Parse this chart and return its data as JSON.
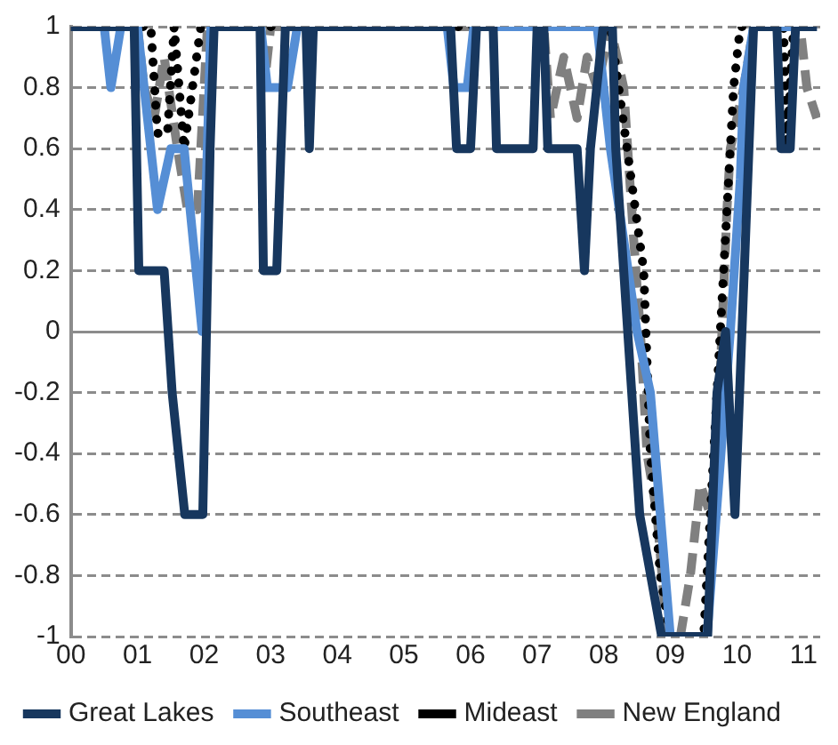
{
  "chart_data": {
    "type": "line",
    "xlim": [
      2000,
      2011.25
    ],
    "xticks": [
      {
        "value": 2000,
        "label": "00"
      },
      {
        "value": 2001,
        "label": "01"
      },
      {
        "value": 2002,
        "label": "02"
      },
      {
        "value": 2003,
        "label": "03"
      },
      {
        "value": 2004,
        "label": "04"
      },
      {
        "value": 2005,
        "label": "05"
      },
      {
        "value": 2006,
        "label": "06"
      },
      {
        "value": 2007,
        "label": "07"
      },
      {
        "value": 2008,
        "label": "08"
      },
      {
        "value": 2009,
        "label": "09"
      },
      {
        "value": 2010,
        "label": "10"
      },
      {
        "value": 2011,
        "label": "11"
      }
    ],
    "ylim": [
      -1,
      1
    ],
    "yticks": [
      -1,
      -0.8,
      -0.6,
      -0.4,
      -0.2,
      0,
      0.2,
      0.4,
      0.6,
      0.8,
      1
    ],
    "grid": "y",
    "legend": "bottom",
    "marker": "none",
    "series": [
      {
        "name": "Great Lakes",
        "color": "#17375e",
        "line_style": "solid",
        "x": [
          2000,
          2000.95,
          2001.02,
          2001.3,
          2001.4,
          2001.52,
          2001.71,
          2001.98,
          2002.09,
          2002.15,
          2002.84,
          2002.89,
          2003.09,
          2003.22,
          2003.53,
          2003.58,
          2003.64,
          2005.7,
          2005.79,
          2006.0,
          2006.09,
          2006.34,
          2006.39,
          2006.94,
          2007.0,
          2007.1,
          2007.16,
          2007.6,
          2007.71,
          2007.8,
          2007.99,
          2008.13,
          2008.18,
          2008.54,
          2008.87,
          2009.56,
          2009.7,
          2009.83,
          2009.97,
          2010.25,
          2010.6,
          2010.66,
          2010.8,
          2010.88,
          2011.2
        ],
        "values": [
          1,
          1,
          0.2,
          0.2,
          0.2,
          -0.2,
          -0.6,
          -0.6,
          0.6,
          1,
          1,
          0.2,
          0.2,
          1,
          1,
          0.6,
          1,
          1,
          0.6,
          0.6,
          1,
          1,
          0.6,
          0.6,
          1,
          1,
          0.6,
          0.6,
          0.2,
          0.6,
          1,
          1,
          0.6,
          -0.6,
          -1,
          -1,
          -0.2,
          0,
          -0.6,
          1,
          1,
          0.6,
          0.6,
          1,
          1
        ]
      },
      {
        "name": "Southeast",
        "color": "#558ed5",
        "line_style": "solid",
        "x": [
          2000,
          2000.5,
          2000.6,
          2000.75,
          2001.0,
          2001.3,
          2001.5,
          2001.7,
          2001.97,
          2002.1,
          2002.85,
          2002.95,
          2003.25,
          2003.4,
          2005.65,
          2005.75,
          2005.95,
          2006.05,
          2007.9,
          2008.1,
          2008.5,
          2008.7,
          2009.0,
          2009.55,
          2009.9,
          2010.05,
          2010.1,
          2010.25,
          2011.2
        ],
        "values": [
          1,
          1,
          0.8,
          1,
          1,
          0.4,
          0.6,
          0.6,
          0,
          1,
          1,
          0.8,
          0.8,
          1,
          1,
          0.8,
          0.8,
          1,
          1,
          0.6,
          0,
          -0.2,
          -1,
          -1,
          0,
          0.5,
          0.8,
          1,
          1
        ]
      },
      {
        "name": "Mideast",
        "color": "#000000",
        "line_style": "dotted",
        "x": [
          2000,
          2001.2,
          2001.3,
          2001.45,
          2001.55,
          2001.7,
          2001.95,
          2008.1,
          2008.6,
          2008.7,
          2008.85,
          2009.0,
          2009.5,
          2009.6,
          2009.75,
          2009.85,
          2009.95,
          2010.05,
          2010.7,
          2010.75,
          2010.85,
          2011.2
        ],
        "values": [
          1,
          1,
          0.65,
          0.65,
          1,
          0.6,
          1,
          1,
          0.2,
          -0.4,
          -0.8,
          -1,
          -1,
          -0.6,
          0,
          0.4,
          0.8,
          1,
          1,
          0.6,
          1,
          1
        ]
      },
      {
        "name": "New England",
        "color": "#808080",
        "line_style": "dashed",
        "x": [
          2000,
          2001.0,
          2001.1,
          2001.25,
          2001.4,
          2001.6,
          2001.75,
          2001.9,
          2002.05,
          2002.85,
          2002.9,
          2003.0,
          2007.1,
          2007.2,
          2007.4,
          2007.6,
          2007.75,
          2007.9,
          2008.1,
          2008.3,
          2008.45,
          2008.55,
          2008.65,
          2008.8,
          2008.95,
          2009.15,
          2009.3,
          2009.45,
          2009.6,
          2009.7,
          2009.85,
          2009.9,
          2010.1,
          2010.25,
          2010.95,
          2011.05,
          2011.2
        ],
        "values": [
          1,
          1,
          0.8,
          0.7,
          0.9,
          0.6,
          0.4,
          0.4,
          1,
          1,
          0.8,
          1,
          1,
          0.7,
          0.9,
          0.7,
          0.9,
          0.8,
          1,
          0.8,
          0.3,
          0,
          -0.4,
          -0.6,
          -1,
          -1,
          -0.8,
          -0.5,
          -0.6,
          -0.4,
          0.4,
          0.6,
          0.8,
          1,
          1,
          0.8,
          0.7
        ]
      }
    ]
  }
}
